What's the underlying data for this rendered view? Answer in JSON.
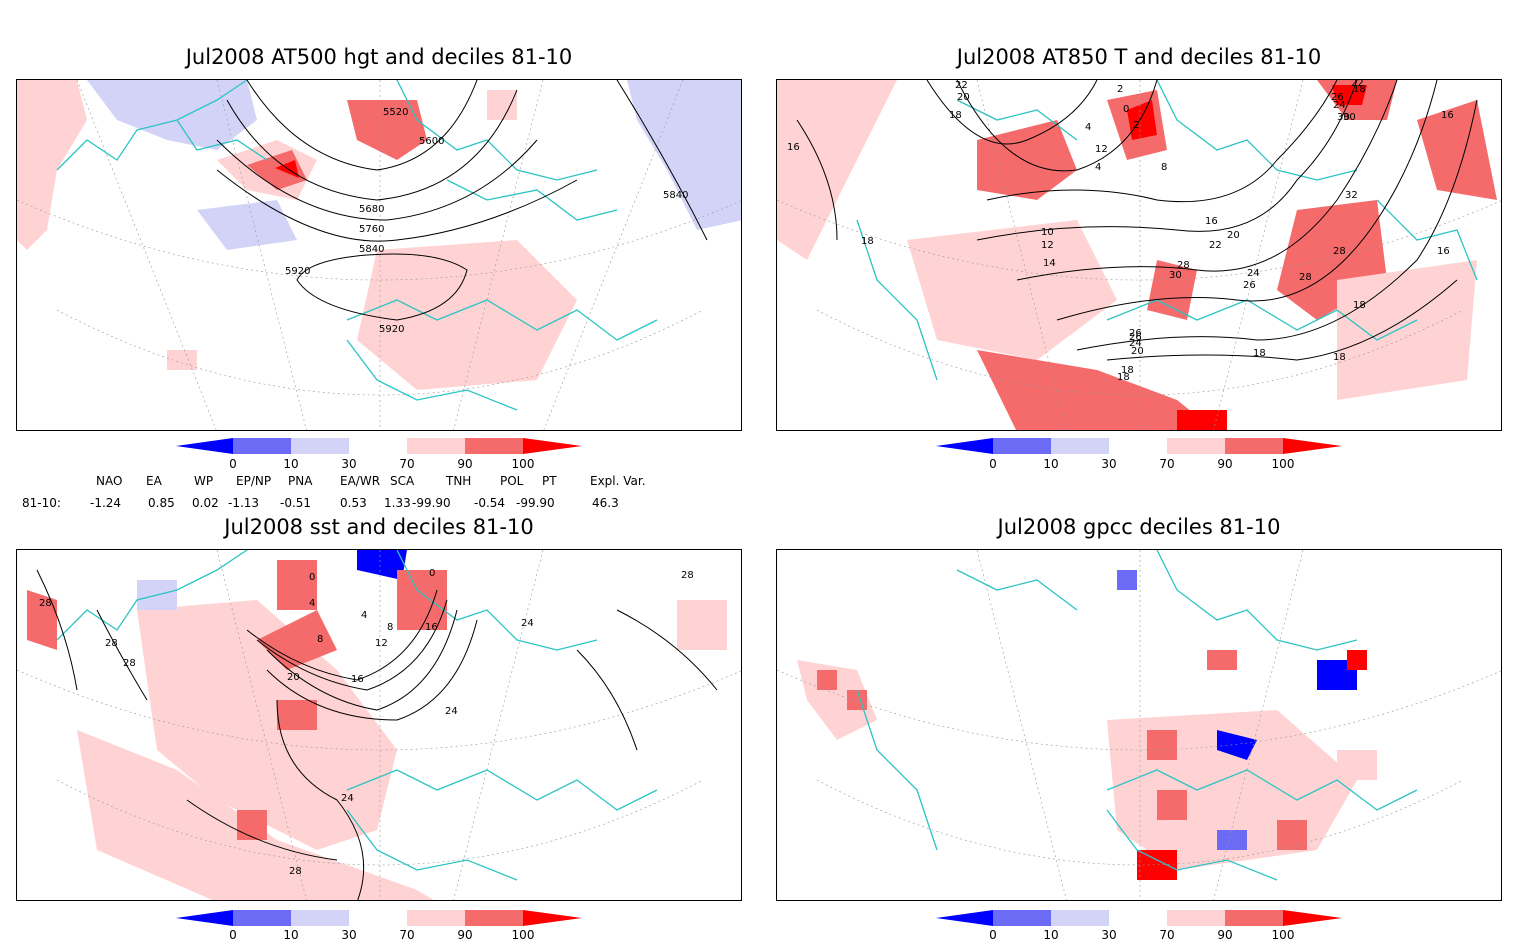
{
  "panels": [
    {
      "id": "hgt500",
      "title": "Jul2008 AT500 hgt and deciles 81-10",
      "contour_labels": [
        "5520",
        "5600",
        "5680",
        "5760",
        "5840",
        "5840",
        "5920",
        "5920"
      ]
    },
    {
      "id": "t850",
      "title": "Jul2008 AT850 T and deciles 81-10",
      "contour_labels": [
        "2",
        "0",
        "2",
        "4",
        "4",
        "8",
        "12",
        "18",
        "20",
        "22",
        "16",
        "16",
        "18",
        "18",
        "10",
        "12",
        "14",
        "16",
        "18",
        "20",
        "22",
        "24",
        "24",
        "26",
        "26",
        "28",
        "28",
        "28",
        "30",
        "30",
        "32",
        "16",
        "18",
        "18",
        "18",
        "20",
        "22",
        "24",
        "26",
        "26",
        "30",
        "18"
      ]
    },
    {
      "id": "sst",
      "title": "Jul2008 sst and deciles 81-10",
      "contour_labels": [
        "28",
        "28",
        "28",
        "28",
        "24",
        "20",
        "16",
        "12",
        "8",
        "8",
        "4",
        "4",
        "0",
        "0",
        "16",
        "24",
        "24",
        "28"
      ]
    },
    {
      "id": "gpcc",
      "title": "Jul2008 gpcc deciles 81-10",
      "contour_labels": []
    }
  ],
  "colorbar": {
    "tick_labels": [
      "0",
      "10",
      "30",
      "70",
      "90",
      "100"
    ],
    "colors": [
      "#0000ff",
      "#6b6bf5",
      "#d3d3f7",
      "#ffffff",
      "#ffd3d3",
      "#f56b6b",
      "#ff0000"
    ]
  },
  "indices": {
    "headers": [
      "NAO",
      "EA",
      "WP",
      "EP/NP",
      "PNA",
      "EA/WR",
      "SCA",
      "TNH",
      "POL",
      "PT",
      "Expl. Var."
    ],
    "row_label": "81-10:",
    "values": [
      "-1.24",
      "0.85",
      "0.02",
      "-1.13",
      "-0.51",
      "0.53",
      "1.33",
      "-99.90",
      "-0.54",
      "-99.90",
      "46.3"
    ]
  },
  "colors": {
    "coastline": "#2cc4c4",
    "grid": "#999999",
    "contour": "#000000"
  }
}
